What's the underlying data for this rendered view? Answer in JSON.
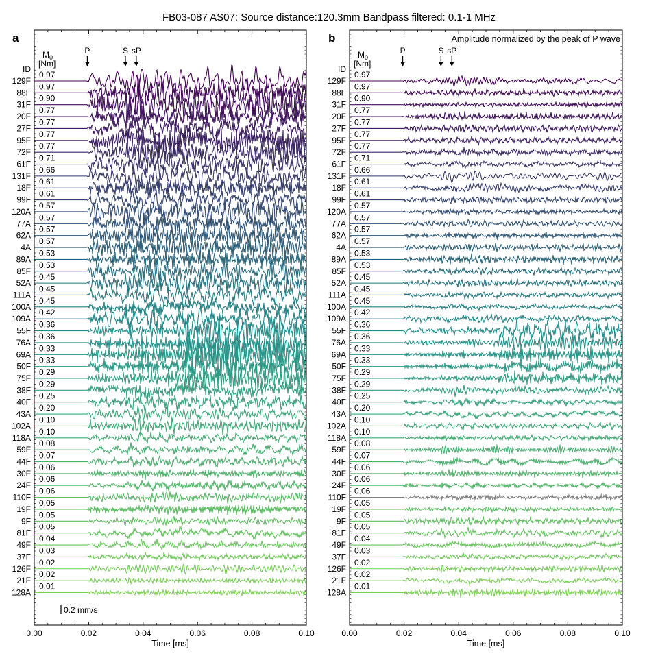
{
  "figure": {
    "title": "FB03-087 AS07: Source distance:120.3mm Bandpass filtered: 0.1-1 MHz"
  },
  "chart_data": [
    {
      "type": "line",
      "panel_label": "a",
      "annotation": "",
      "xlabel": "Time [ms]",
      "xlim": [
        0.0,
        0.1
      ],
      "x_ticks": [
        "0.00",
        "0.02",
        "0.04",
        "0.06",
        "0.08",
        "0.10"
      ],
      "id_header": "ID",
      "m0_header": "M0",
      "m0_unit": "[Nm]",
      "scale_bar_label": "0.2 mm/s",
      "phase_markers": [
        {
          "label": "P",
          "time": 0.0195
        },
        {
          "label": "S",
          "time": 0.0335
        },
        {
          "label": "sP",
          "time": 0.0375
        }
      ],
      "normalized": false
    },
    {
      "type": "line",
      "panel_label": "b",
      "annotation": "Amplitude normalized by the peak of P wave",
      "xlabel": "Time [ms]",
      "xlim": [
        0.0,
        0.1
      ],
      "x_ticks": [
        "0.00",
        "0.02",
        "0.04",
        "0.06",
        "0.08",
        "0.10"
      ],
      "id_header": "ID",
      "m0_header": "M0",
      "m0_unit": "[Nm]",
      "scale_bar_label": "",
      "phase_markers": [
        {
          "label": "P",
          "time": 0.0195
        },
        {
          "label": "S",
          "time": 0.0335
        },
        {
          "label": "sP",
          "time": 0.0375
        }
      ],
      "normalized": true
    }
  ],
  "traces": [
    {
      "id": "129F",
      "m0": "0.97"
    },
    {
      "id": "88F",
      "m0": "0.97"
    },
    {
      "id": "31F",
      "m0": "0.90"
    },
    {
      "id": "20F",
      "m0": "0.77"
    },
    {
      "id": "27F",
      "m0": "0.77"
    },
    {
      "id": "95F",
      "m0": "0.77"
    },
    {
      "id": "72F",
      "m0": "0.77"
    },
    {
      "id": "61F",
      "m0": "0.71"
    },
    {
      "id": "131F",
      "m0": "0.66"
    },
    {
      "id": "18F",
      "m0": "0.61"
    },
    {
      "id": "99F",
      "m0": "0.61"
    },
    {
      "id": "120A",
      "m0": "0.57"
    },
    {
      "id": "77A",
      "m0": "0.57"
    },
    {
      "id": "62A",
      "m0": "0.57"
    },
    {
      "id": "4A",
      "m0": "0.57"
    },
    {
      "id": "89A",
      "m0": "0.53"
    },
    {
      "id": "85F",
      "m0": "0.53"
    },
    {
      "id": "52A",
      "m0": "0.45"
    },
    {
      "id": "111A",
      "m0": "0.45"
    },
    {
      "id": "100A",
      "m0": "0.45"
    },
    {
      "id": "109A",
      "m0": "0.42"
    },
    {
      "id": "55F",
      "m0": "0.36"
    },
    {
      "id": "76A",
      "m0": "0.36"
    },
    {
      "id": "69A",
      "m0": "0.33"
    },
    {
      "id": "50F",
      "m0": "0.33"
    },
    {
      "id": "75F",
      "m0": "0.29"
    },
    {
      "id": "38F",
      "m0": "0.29"
    },
    {
      "id": "40F",
      "m0": "0.25"
    },
    {
      "id": "43A",
      "m0": "0.20"
    },
    {
      "id": "102A",
      "m0": "0.10"
    },
    {
      "id": "118A",
      "m0": "0.10"
    },
    {
      "id": "59F",
      "m0": "0.08"
    },
    {
      "id": "44F",
      "m0": "0.07"
    },
    {
      "id": "30F",
      "m0": "0.06"
    },
    {
      "id": "24F",
      "m0": "0.06"
    },
    {
      "id": "110F",
      "m0": "0.06"
    },
    {
      "id": "19F",
      "m0": "0.05"
    },
    {
      "id": "9F",
      "m0": "0.05"
    },
    {
      "id": "81F",
      "m0": "0.05"
    },
    {
      "id": "49F",
      "m0": "0.04"
    },
    {
      "id": "37F",
      "m0": "0.03"
    },
    {
      "id": "126F",
      "m0": "0.02"
    },
    {
      "id": "21F",
      "m0": "0.02"
    },
    {
      "id": "128A",
      "m0": "0.01"
    }
  ],
  "colors": {
    "colormap_start": "#440154",
    "colormap_mid": "#21918c",
    "colormap_end": "#7ad151",
    "highlight_trace_color": "#7f7f7f",
    "axes": "#000000"
  },
  "highlight_trace_b": "110F"
}
